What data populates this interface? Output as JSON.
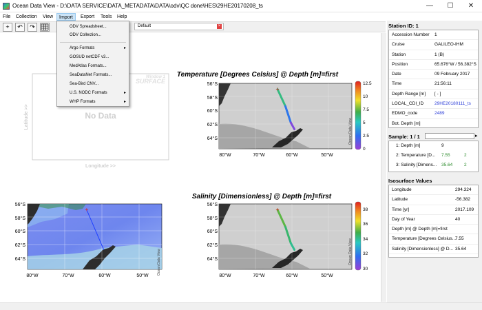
{
  "window": {
    "title": "Ocean Data View - D:\\DATA SERVICE\\DATA_METADATA\\DATA\\odv\\QC done\\HES\\29HE20170208_ts",
    "minimize": "—",
    "maximize": "☐",
    "close": "✕"
  },
  "menu": [
    "File",
    "Collection",
    "View",
    "Import",
    "Export",
    "Tools",
    "Help"
  ],
  "toolbar": {
    "icons": [
      "plus-icon",
      "undo-icon",
      "redo-icon",
      "grid-icon"
    ]
  },
  "doc_tab": {
    "label": "Default"
  },
  "import_menu": {
    "items": [
      {
        "label": "ODV Spreadsheet...",
        "submenu": false
      },
      {
        "label": "ODV Collection...",
        "submenu": false
      },
      {
        "label": "Argo Formats",
        "submenu": true
      },
      {
        "label": "GOSUD netCDF v3...",
        "submenu": false
      },
      {
        "label": "MedAtlas Formats...",
        "submenu": false
      },
      {
        "label": "SeaDataNet Formats...",
        "submenu": false
      },
      {
        "label": "Sea-Bird CNV...",
        "submenu": false
      },
      {
        "label": "U.S. NODC Formats",
        "submenu": true
      },
      {
        "label": "WHP Formats",
        "submenu": true
      }
    ]
  },
  "empty_window": {
    "no_data": "No Data",
    "xlabel": "Longitude >>",
    "ylabel": "Latitude >>",
    "watermark_top": "Window 1",
    "watermark_bottom": "SURFACE"
  },
  "station": {
    "header": "Station ID: 1",
    "rows": [
      {
        "key": "Accession Number",
        "value": "1"
      },
      {
        "key": "Cruise",
        "value": "GALILEO-IHM"
      },
      {
        "key": "Station",
        "value": "1 (B)"
      },
      {
        "key": "Position",
        "value": "65.676°W / 56.382°S"
      },
      {
        "key": "Date",
        "value": "09 February 2017"
      },
      {
        "key": "Time",
        "value": "21:56:11"
      },
      {
        "key": "Depth Range [m]",
        "value": "[ - ]"
      },
      {
        "key": "LOCAL_CDI_ID",
        "value": "29HE20180111_ts"
      },
      {
        "key": "EDMO_code",
        "value": "2489"
      },
      {
        "key": "Bot. Depth [m]",
        "value": ""
      }
    ]
  },
  "sample": {
    "header": "Sample: 1 / 1",
    "rows": [
      {
        "key": "1: Depth [m]",
        "v1": "9",
        "v2": ""
      },
      {
        "key": "2: Temperature [D...",
        "v1": "7.55",
        "v2": "2"
      },
      {
        "key": "3: Salinity [Dimens...",
        "v1": "35.64",
        "v2": "2"
      }
    ]
  },
  "isosurface": {
    "header": "Isosurface Values",
    "rows": [
      {
        "key": "Longitude",
        "value": "294.324"
      },
      {
        "key": "Latitude",
        "value": "-56.382"
      },
      {
        "key": "Time [yr]",
        "value": "2017.109"
      },
      {
        "key": "Day of Year",
        "value": "40"
      },
      {
        "key": "Depth [m] @ Depth [m]=first",
        "value": ""
      },
      {
        "key": "Temperature [Degrees Celsius...",
        "value": "7.55"
      },
      {
        "key": "Salinity [Dimensionless] @ D...",
        "value": "35.64"
      }
    ]
  },
  "colors": {
    "accent": "#cce4f7",
    "link": "#2a3cd8",
    "green": "#2a8a2a",
    "track": "#3fae49"
  },
  "chart_data": [
    {
      "type": "scatter",
      "title": "Temperature [Degrees Celsius] @ Depth [m]=first",
      "x_ticks": [
        "80°W",
        "70°W",
        "60°W",
        "50°W"
      ],
      "y_ticks": [
        "56°S",
        "58°S",
        "60°S",
        "62°S",
        "64°S"
      ],
      "xlim": [
        -82,
        -45
      ],
      "ylim": [
        -65.5,
        -55.5
      ],
      "colorbar": {
        "ticks": [
          "12.5",
          "10",
          "7.5",
          "5",
          "2.5",
          "0"
        ],
        "range": [
          0,
          12.5
        ],
        "label": "Ocean Data View"
      },
      "track": [
        {
          "lon": -65.7,
          "lat": -56.4,
          "value": 7.5
        },
        {
          "lon": -63.5,
          "lat": -59.0,
          "value": 4.5
        },
        {
          "lon": -62.0,
          "lat": -61.5,
          "value": 1.0
        },
        {
          "lon": -61.0,
          "lat": -62.5,
          "value": 0.2
        }
      ]
    },
    {
      "type": "scatter",
      "title": "Salinity [Dimensionless] @ Depth [m]=first",
      "x_ticks": [
        "80°W",
        "70°W",
        "60°W",
        "50°W"
      ],
      "y_ticks": [
        "56°S",
        "58°S",
        "60°S",
        "62°S",
        "64°S"
      ],
      "xlim": [
        -82,
        -45
      ],
      "ylim": [
        -65.5,
        -55.5
      ],
      "colorbar": {
        "ticks": [
          "38",
          "36",
          "34",
          "32",
          "30"
        ],
        "range": [
          30,
          39
        ],
        "label": "Ocean Data View"
      },
      "track": [
        {
          "lon": -65.7,
          "lat": -56.4,
          "value": 35.6
        },
        {
          "lon": -63.5,
          "lat": -59.0,
          "value": 34.8
        },
        {
          "lon": -62.0,
          "lat": -61.5,
          "value": 34.3
        },
        {
          "lon": -61.0,
          "lat": -62.5,
          "value": 34.0
        }
      ]
    },
    {
      "type": "scatter",
      "title": "",
      "x_ticks": [
        "80°W",
        "70°W",
        "60°W",
        "50°W"
      ],
      "y_ticks": [
        "56°S",
        "58°S",
        "60°S",
        "62°S",
        "64°S"
      ],
      "xlim": [
        -82,
        -45
      ],
      "ylim": [
        -65.5,
        -55.5
      ],
      "colorbar_label": "Ocean Data View",
      "track": [
        {
          "lon": -65.7,
          "lat": -56.4
        },
        {
          "lon": -61.0,
          "lat": -62.5
        }
      ]
    }
  ]
}
